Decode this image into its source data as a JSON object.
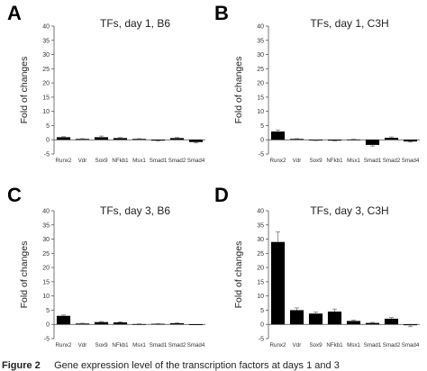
{
  "caption": {
    "figure_label": "Figure 2",
    "text": "Gene expression level of the transcription factors at days 1 and 3"
  },
  "chart_data": [
    {
      "panel": "A",
      "type": "bar",
      "title": "TFs, day 1, B6",
      "ylabel": "Fold of changes",
      "ylim": [
        -5,
        40
      ],
      "yticks": [
        -5,
        0,
        5,
        10,
        15,
        20,
        25,
        30,
        35,
        40
      ],
      "categories": [
        "Runx2",
        "Vdr",
        "Sox9",
        "NFkb1",
        "Msx1",
        "Smad1",
        "Smad2",
        "Smad4"
      ],
      "values": [
        0.9,
        0.3,
        0.9,
        0.6,
        0.3,
        -0.3,
        0.6,
        -0.8
      ],
      "errors": [
        0.2,
        0.1,
        0.4,
        0.2,
        0.1,
        0.1,
        0.2,
        0.3
      ]
    },
    {
      "panel": "B",
      "type": "bar",
      "title": "TFs, day 1, C3H",
      "ylabel": "Fold of changes",
      "ylim": [
        -5,
        40
      ],
      "yticks": [
        -5,
        0,
        5,
        10,
        15,
        20,
        25,
        30,
        35,
        40
      ],
      "categories": [
        "Runx2",
        "Vdr",
        "Sox9",
        "NFkb1",
        "Msx1",
        "Smad1",
        "Smad2",
        "Smad4"
      ],
      "values": [
        2.9,
        0.3,
        -0.2,
        -0.3,
        0.1,
        -1.8,
        0.7,
        -0.6
      ],
      "errors": [
        0.5,
        0.1,
        0.1,
        0.1,
        0.1,
        0.4,
        0.3,
        0.2
      ]
    },
    {
      "panel": "C",
      "type": "bar",
      "title": "TFs, day 3, B6",
      "ylabel": "Fold of changes",
      "ylim": [
        -5,
        40
      ],
      "yticks": [
        -5,
        0,
        5,
        10,
        15,
        20,
        25,
        30,
        35,
        40
      ],
      "categories": [
        "Runx2",
        "Vdr",
        "Sox9",
        "NFkb1",
        "Msx1",
        "Smad1",
        "Smad2",
        "Smad4"
      ],
      "values": [
        3.0,
        0.3,
        0.8,
        0.7,
        0.1,
        0.2,
        0.4,
        0.0
      ],
      "errors": [
        0.3,
        0.1,
        0.2,
        0.2,
        0.1,
        0.1,
        0.1,
        0.0
      ]
    },
    {
      "panel": "D",
      "type": "bar",
      "title": "TFs, day 3, C3H",
      "ylabel": "Fold of changes",
      "ylim": [
        -5,
        40
      ],
      "yticks": [
        -5,
        0,
        5,
        10,
        15,
        20,
        25,
        30,
        35,
        40
      ],
      "categories": [
        "Runx2",
        "Vdr",
        "Sox9",
        "NFkb1",
        "Msx1",
        "Smad1",
        "Smad2",
        "Smad4"
      ],
      "values": [
        29.0,
        5.0,
        3.8,
        4.5,
        1.2,
        0.5,
        2.0,
        -0.3
      ],
      "errors": [
        3.5,
        0.8,
        0.5,
        0.9,
        0.3,
        0.2,
        0.4,
        0.5
      ]
    }
  ]
}
